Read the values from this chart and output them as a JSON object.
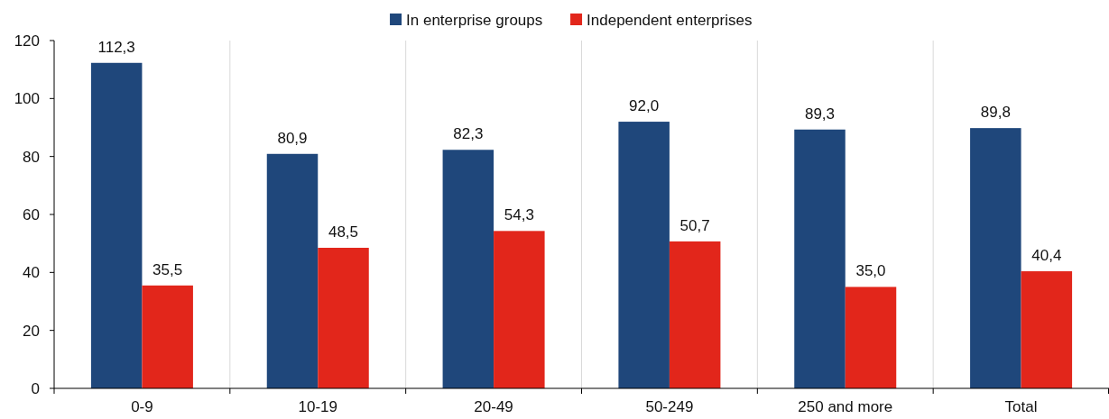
{
  "chart_data": {
    "type": "bar",
    "categories": [
      "0-9",
      "10-19",
      "20-49",
      "50-249",
      "250 and more",
      "Total"
    ],
    "series": [
      {
        "name": "In enterprise groups",
        "color": "#1f477b",
        "values": [
          112.3,
          80.9,
          82.3,
          92.0,
          89.3,
          89.8
        ],
        "value_labels": [
          "112,3",
          "80,9",
          "82,3",
          "92,0",
          "89,3",
          "89,8"
        ]
      },
      {
        "name": "Independent enterprises",
        "color": "#e2261b",
        "values": [
          35.5,
          48.5,
          54.3,
          50.7,
          35.0,
          40.4
        ],
        "value_labels": [
          "35,5",
          "48,5",
          "54,3",
          "50,7",
          "35,0",
          "40,4"
        ]
      }
    ],
    "ylim": [
      0,
      120
    ],
    "yticks": [
      0,
      20,
      40,
      60,
      80,
      100,
      120
    ],
    "grid": "x",
    "legend": "top"
  }
}
